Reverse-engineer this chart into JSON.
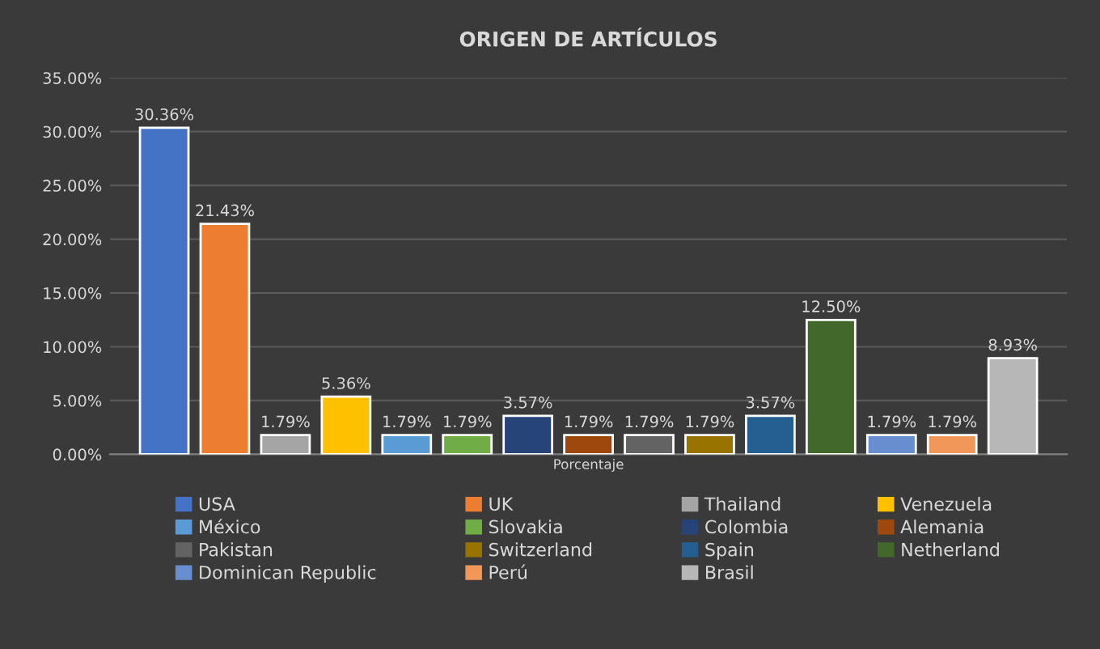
{
  "chart_data": {
    "type": "bar",
    "title": "ORIGEN DE ARTÍCULOS",
    "categories": [
      "Porcentaje"
    ],
    "series": [
      {
        "name": "USA",
        "color": "#4472c4",
        "values": [
          30.36
        ],
        "value_labels": [
          "30.36%"
        ]
      },
      {
        "name": "UK",
        "color": "#ed7d31",
        "values": [
          21.43
        ],
        "value_labels": [
          "21.43%"
        ]
      },
      {
        "name": "Thailand",
        "color": "#a5a5a5",
        "values": [
          1.79
        ],
        "value_labels": [
          "1.79%"
        ]
      },
      {
        "name": "Venezuela",
        "color": "#ffc000",
        "values": [
          5.36
        ],
        "value_labels": [
          "5.36%"
        ]
      },
      {
        "name": "México",
        "color": "#5b9bd5",
        "values": [
          1.79
        ],
        "value_labels": [
          "1.79%"
        ]
      },
      {
        "name": "Slovakia",
        "color": "#70ad47",
        "values": [
          1.79
        ],
        "value_labels": [
          "1.79%"
        ]
      },
      {
        "name": "Colombia",
        "color": "#264478",
        "values": [
          3.57
        ],
        "value_labels": [
          "3.57%"
        ]
      },
      {
        "name": "Alemania",
        "color": "#9e480e",
        "values": [
          1.79
        ],
        "value_labels": [
          "1.79%"
        ]
      },
      {
        "name": "Pakistan",
        "color": "#636363",
        "values": [
          1.79
        ],
        "value_labels": [
          "1.79%"
        ]
      },
      {
        "name": "Switzerland",
        "color": "#997300",
        "values": [
          1.79
        ],
        "value_labels": [
          "1.79%"
        ]
      },
      {
        "name": "Spain",
        "color": "#255e91",
        "values": [
          3.57
        ],
        "value_labels": [
          "3.57%"
        ]
      },
      {
        "name": "Netherland",
        "color": "#43682b",
        "values": [
          12.5
        ],
        "value_labels": [
          "12.50%"
        ]
      },
      {
        "name": "Dominican Republic",
        "color": "#698ed0",
        "values": [
          1.79
        ],
        "value_labels": [
          "1.79%"
        ]
      },
      {
        "name": "Perú",
        "color": "#f1975a",
        "values": [
          1.79
        ],
        "value_labels": [
          "1.79%"
        ]
      },
      {
        "name": "Brasil",
        "color": "#b7b7b7",
        "values": [
          8.93
        ],
        "value_labels": [
          "8.93%"
        ]
      }
    ],
    "ylim": [
      0,
      35
    ],
    "yticks": [
      {
        "value": 0,
        "label": "0.00%"
      },
      {
        "value": 5,
        "label": "5.00%"
      },
      {
        "value": 10,
        "label": "10.00%"
      },
      {
        "value": 15,
        "label": "15.00%"
      },
      {
        "value": 20,
        "label": "20.00%"
      },
      {
        "value": 25,
        "label": "25.00%"
      },
      {
        "value": 30,
        "label": "30.00%"
      },
      {
        "value": 35,
        "label": "35.00%"
      }
    ],
    "grid": "y",
    "legend": "bottom"
  }
}
